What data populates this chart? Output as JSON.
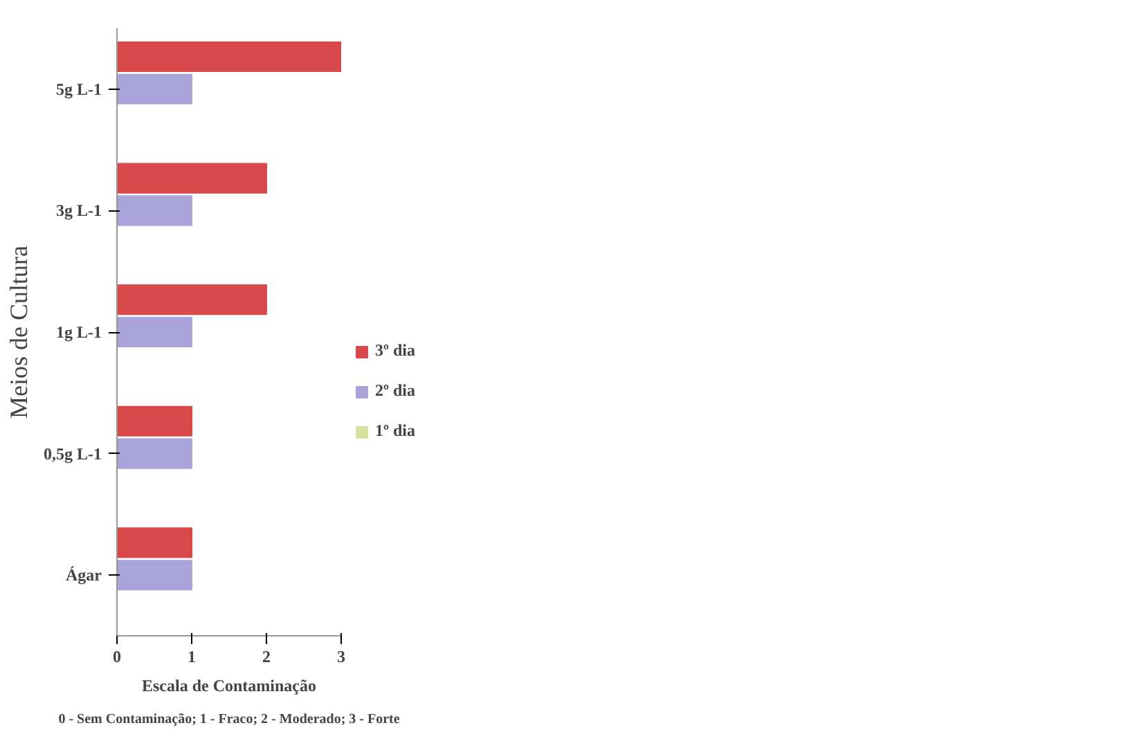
{
  "chart_data": {
    "type": "bar",
    "orientation": "horizontal",
    "categories": [
      "5g L-1",
      "3g L-1",
      "1g L-1",
      "0,5g L-1",
      "Ágar"
    ],
    "series": [
      {
        "name": "3º dia",
        "color": "#d9484a",
        "values": [
          3,
          2,
          2,
          1,
          1
        ]
      },
      {
        "name": "2º dia",
        "color": "#a9a3d9",
        "values": [
          1,
          1,
          1,
          1,
          1
        ]
      },
      {
        "name": "1º dia",
        "color": "#d4e09b",
        "values": [
          0,
          0,
          0,
          0,
          0
        ]
      }
    ],
    "xlim": [
      0,
      3
    ],
    "xticks": [
      0,
      1,
      2,
      3
    ],
    "ylabel": "Meios de Cultura",
    "xlabel": "Escala de Contaminação",
    "annotations": [
      "0 - Sem Contaminação; 1 - Fraco; 2 - Moderado; 3 - Forte"
    ],
    "grid": false,
    "legend": "right"
  }
}
